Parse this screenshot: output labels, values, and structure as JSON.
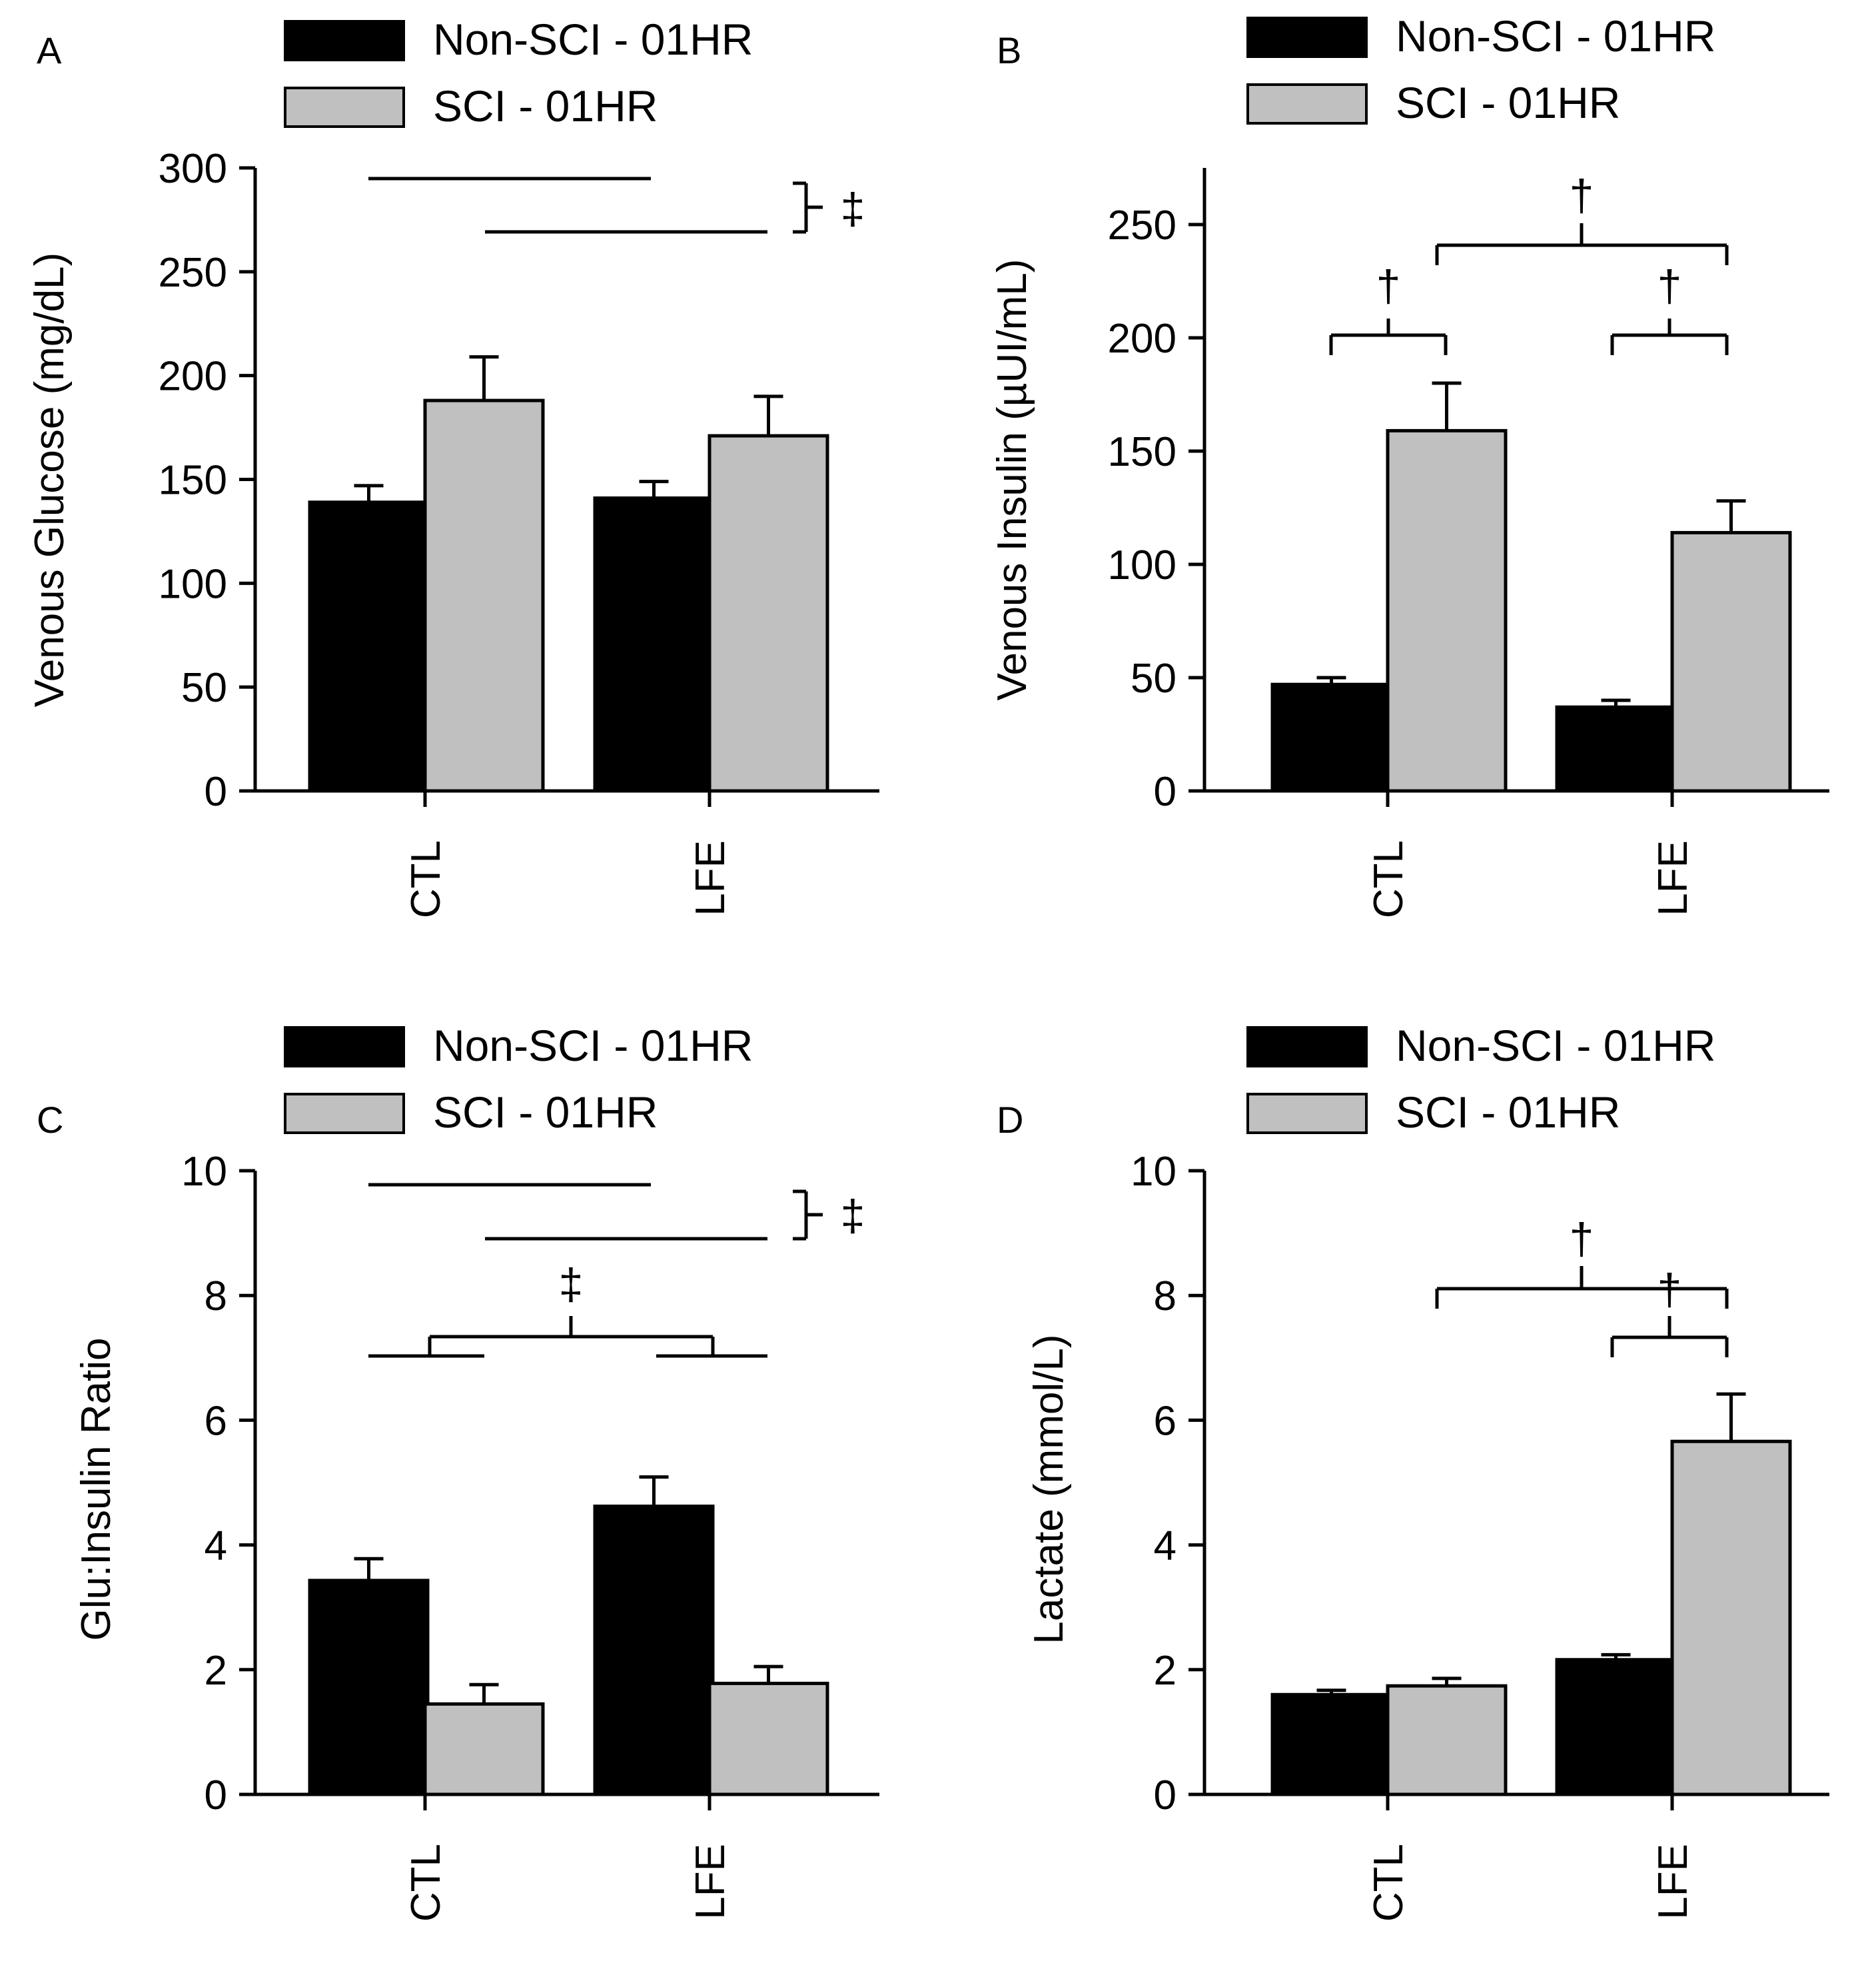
{
  "chart_data": [
    {
      "panel": "A",
      "type": "bar",
      "categories": [
        "CTL",
        "LFE"
      ],
      "series": [
        {
          "name": "Non-SCI - 01HR",
          "color": "#000000",
          "values": [
            139,
            141
          ],
          "errors": [
            8,
            8
          ]
        },
        {
          "name": "SCI - 01HR",
          "color": "#c0c0c0",
          "values": [
            188,
            171
          ],
          "errors": [
            21,
            19
          ]
        }
      ],
      "xlabel": "",
      "ylabel": "Venous Glucose (mg/dL)",
      "ylim": [
        0,
        300
      ],
      "yticks": [
        0,
        50,
        100,
        150,
        200,
        250,
        300
      ],
      "legend": "top",
      "grid": false,
      "annotations": [
        "‡"
      ]
    },
    {
      "panel": "B",
      "type": "bar",
      "categories": [
        "CTL",
        "LFE"
      ],
      "series": [
        {
          "name": "Non-SCI - 01HR",
          "color": "#000000",
          "values": [
            47,
            37
          ],
          "errors": [
            3,
            3
          ]
        },
        {
          "name": "SCI - 01HR",
          "color": "#c0c0c0",
          "values": [
            159,
            114
          ],
          "errors": [
            21,
            14
          ]
        }
      ],
      "xlabel": "",
      "ylabel": "Venous Insulin (µUI/mL)",
      "ylim": [
        0,
        275
      ],
      "yticks": [
        0,
        50,
        100,
        150,
        200,
        250
      ],
      "legend": "top",
      "grid": false,
      "annotations": [
        "†",
        "†",
        "†"
      ]
    },
    {
      "panel": "C",
      "type": "bar",
      "categories": [
        "CTL",
        "LFE"
      ],
      "series": [
        {
          "name": "Non-SCI - 01HR",
          "color": "#000000",
          "values": [
            3.43,
            4.62
          ],
          "errors": [
            0.35,
            0.47
          ]
        },
        {
          "name": "SCI - 01HR",
          "color": "#c0c0c0",
          "values": [
            1.45,
            1.78
          ],
          "errors": [
            0.31,
            0.27
          ]
        }
      ],
      "xlabel": "",
      "ylabel": "Glu:Insulin Ratio",
      "ylim": [
        0,
        10
      ],
      "yticks": [
        0,
        2,
        4,
        6,
        8,
        10
      ],
      "legend": "top",
      "grid": false,
      "annotations": [
        "‡",
        "‡"
      ]
    },
    {
      "panel": "D",
      "type": "bar",
      "categories": [
        "CTL",
        "LFE"
      ],
      "series": [
        {
          "name": "Non-SCI - 01HR",
          "color": "#000000",
          "values": [
            1.6,
            2.16
          ],
          "errors": [
            0.07,
            0.08
          ]
        },
        {
          "name": "SCI - 01HR",
          "color": "#c0c0c0",
          "values": [
            1.74,
            5.66
          ],
          "errors": [
            0.12,
            0.76
          ]
        }
      ],
      "xlabel": "",
      "ylabel": "Lactate (mmol/L)",
      "ylim": [
        0,
        10
      ],
      "yticks": [
        0,
        2,
        4,
        6,
        8,
        10
      ],
      "legend": "top",
      "grid": false,
      "annotations": [
        "†",
        "†"
      ]
    }
  ]
}
